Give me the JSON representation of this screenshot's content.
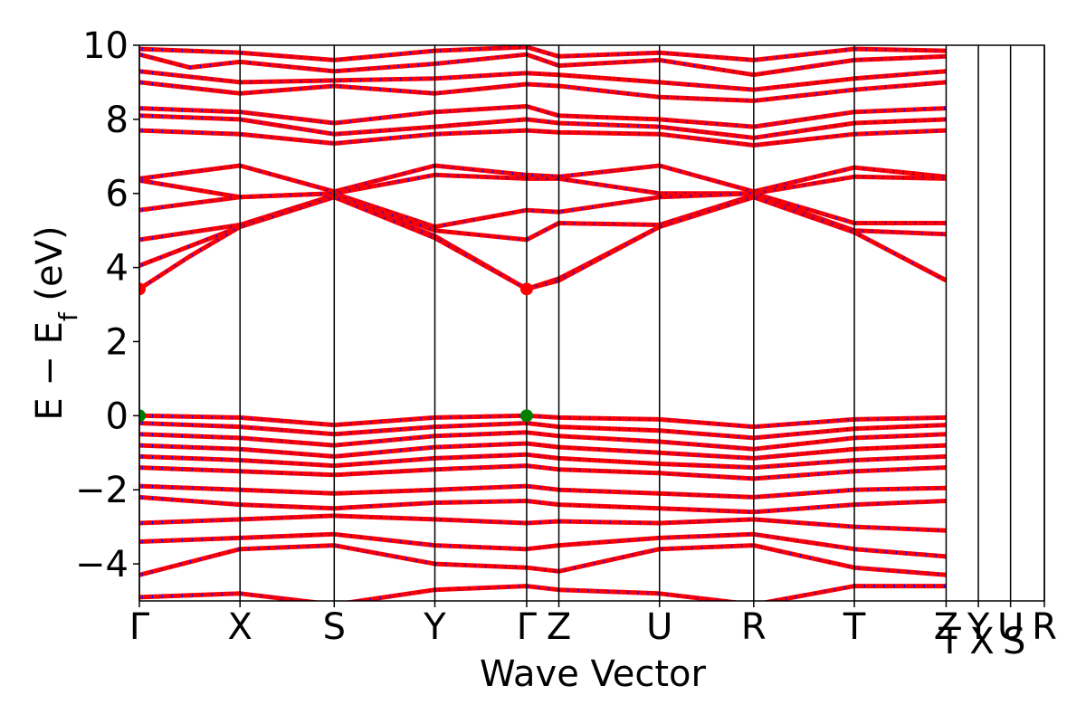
{
  "chart_data": {
    "type": "line",
    "title": "",
    "xlabel": "Wave Vector",
    "ylabel": "E − E",
    "ylabel_subscript": "f",
    "ylabel_unit": " (eV)",
    "ylim": [
      -5,
      10
    ],
    "yticks": [
      {
        "value": -4,
        "label": "−4"
      },
      {
        "value": -2,
        "label": "−2"
      },
      {
        "value": 0,
        "label": "0"
      },
      {
        "value": 2,
        "label": "2"
      },
      {
        "value": 4,
        "label": "4"
      },
      {
        "value": 6,
        "label": "6"
      },
      {
        "value": 8,
        "label": "8"
      },
      {
        "value": 10,
        "label": "10"
      }
    ],
    "kpoints": [
      {
        "label": "Γ",
        "x": 0.0
      },
      {
        "label": "X",
        "x": 0.5
      },
      {
        "label": "S",
        "x": 0.968
      },
      {
        "label": "Y",
        "x": 1.468
      },
      {
        "label": "Γ",
        "x": 1.924
      },
      {
        "label": "Z",
        "x": 2.084
      },
      {
        "label": "U",
        "x": 2.584
      },
      {
        "label": "R",
        "x": 3.052
      },
      {
        "label": "T",
        "x": 3.552
      },
      {
        "label": "Z",
        "x": 4.008
      },
      {
        "label": "T",
        "x": 4.008
      },
      {
        "label": "Y",
        "x": 4.168
      },
      {
        "label": "X",
        "x": 4.168
      },
      {
        "label": "U",
        "x": 4.328
      },
      {
        "label": "S",
        "x": 4.328
      },
      {
        "label": "R",
        "x": 4.496
      }
    ],
    "xlim": [
      0,
      4.496
    ],
    "colors": {
      "spin_up": "#0000ff",
      "spin_down": "#ff0000",
      "cbm": "#ff0000",
      "vbm": "#008000",
      "vline": "#000000"
    },
    "series": [
      {
        "values": [
          [
            0,
            9.9
          ],
          [
            0.5,
            9.8
          ],
          [
            0.968,
            9.6
          ],
          [
            1.468,
            9.85
          ],
          [
            1.924,
            9.95
          ],
          [
            2.084,
            9.7
          ],
          [
            2.584,
            9.8
          ],
          [
            3.052,
            9.6
          ],
          [
            3.552,
            9.9
          ],
          [
            4.008,
            9.85
          ]
        ]
      },
      {
        "values": [
          [
            0,
            9.75
          ],
          [
            0.25,
            9.4
          ],
          [
            0.5,
            9.55
          ],
          [
            0.968,
            9.3
          ],
          [
            1.468,
            9.5
          ],
          [
            1.924,
            9.75
          ],
          [
            2.084,
            9.45
          ],
          [
            2.584,
            9.6
          ],
          [
            3.052,
            9.2
          ],
          [
            3.552,
            9.6
          ],
          [
            4.008,
            9.7
          ]
        ]
      },
      {
        "values": [
          [
            0,
            9.3
          ],
          [
            0.5,
            9.0
          ],
          [
            0.968,
            9.05
          ],
          [
            1.468,
            9.1
          ],
          [
            1.924,
            9.25
          ],
          [
            2.084,
            9.2
          ],
          [
            2.584,
            9.0
          ],
          [
            3.052,
            8.8
          ],
          [
            3.552,
            9.1
          ],
          [
            4.008,
            9.3
          ]
        ]
      },
      {
        "values": [
          [
            0,
            9.0
          ],
          [
            0.5,
            8.7
          ],
          [
            0.968,
            8.9
          ],
          [
            1.468,
            8.7
          ],
          [
            1.924,
            8.95
          ],
          [
            2.084,
            8.9
          ],
          [
            2.584,
            8.6
          ],
          [
            3.052,
            8.5
          ],
          [
            3.552,
            8.8
          ],
          [
            4.008,
            9.0
          ]
        ]
      },
      {
        "values": [
          [
            0,
            8.3
          ],
          [
            0.5,
            8.2
          ],
          [
            0.968,
            7.9
          ],
          [
            1.468,
            8.2
          ],
          [
            1.924,
            8.35
          ],
          [
            2.084,
            8.1
          ],
          [
            2.584,
            8.0
          ],
          [
            3.052,
            7.8
          ],
          [
            3.552,
            8.2
          ],
          [
            4.008,
            8.3
          ]
        ]
      },
      {
        "values": [
          [
            0,
            8.1
          ],
          [
            0.5,
            8.0
          ],
          [
            0.968,
            7.6
          ],
          [
            1.468,
            7.8
          ],
          [
            1.924,
            8.0
          ],
          [
            2.084,
            7.9
          ],
          [
            2.584,
            7.8
          ],
          [
            3.052,
            7.5
          ],
          [
            3.552,
            7.9
          ],
          [
            4.008,
            8.0
          ]
        ]
      },
      {
        "values": [
          [
            0,
            7.7
          ],
          [
            0.5,
            7.6
          ],
          [
            0.968,
            7.35
          ],
          [
            1.468,
            7.6
          ],
          [
            1.924,
            7.7
          ],
          [
            2.084,
            7.65
          ],
          [
            2.584,
            7.6
          ],
          [
            3.052,
            7.3
          ],
          [
            3.552,
            7.6
          ],
          [
            4.008,
            7.7
          ]
        ]
      },
      {
        "values": [
          [
            0,
            6.4
          ],
          [
            0.5,
            6.75
          ],
          [
            0.968,
            6.05
          ],
          [
            1.468,
            6.75
          ],
          [
            1.924,
            6.5
          ],
          [
            2.084,
            6.45
          ],
          [
            2.584,
            6.75
          ],
          [
            3.052,
            6.05
          ],
          [
            3.552,
            6.7
          ],
          [
            4.008,
            6.45
          ]
        ]
      },
      {
        "values": [
          [
            0,
            6.35
          ],
          [
            0.5,
            5.9
          ],
          [
            0.968,
            6.0
          ],
          [
            1.468,
            6.5
          ],
          [
            1.924,
            6.4
          ],
          [
            2.084,
            6.4
          ],
          [
            2.584,
            6.0
          ],
          [
            3.052,
            6.0
          ],
          [
            3.552,
            6.45
          ],
          [
            4.008,
            6.4
          ]
        ]
      },
      {
        "values": [
          [
            0,
            5.55
          ],
          [
            0.5,
            5.9
          ],
          [
            0.968,
            6.0
          ],
          [
            1.468,
            5.1
          ],
          [
            1.924,
            5.55
          ],
          [
            2.084,
            5.5
          ],
          [
            2.584,
            5.9
          ],
          [
            3.052,
            6.0
          ],
          [
            3.552,
            5.2
          ],
          [
            4.008,
            5.2
          ]
        ]
      },
      {
        "values": [
          [
            0,
            4.75
          ],
          [
            0.5,
            5.15
          ],
          [
            0.968,
            5.95
          ],
          [
            1.468,
            5.0
          ],
          [
            1.924,
            4.75
          ],
          [
            2.084,
            5.2
          ],
          [
            2.584,
            5.15
          ],
          [
            3.052,
            5.95
          ],
          [
            3.552,
            5.0
          ],
          [
            4.008,
            4.9
          ]
        ]
      },
      {
        "values": [
          [
            0,
            4.05
          ],
          [
            0.5,
            5.1
          ],
          [
            0.968,
            5.9
          ],
          [
            1.468,
            4.85
          ],
          [
            1.924,
            3.42
          ],
          [
            2.084,
            3.7
          ],
          [
            2.584,
            5.1
          ],
          [
            3.052,
            5.9
          ],
          [
            3.552,
            4.95
          ],
          [
            4.008,
            3.65
          ]
        ]
      },
      {
        "values": [
          [
            0,
            3.42
          ],
          [
            0.25,
            4.3
          ],
          [
            0.5,
            5.1
          ],
          [
            0.968,
            5.9
          ],
          [
            1.468,
            4.8
          ],
          [
            1.924,
            3.42
          ],
          [
            2.084,
            3.65
          ],
          [
            2.584,
            5.1
          ],
          [
            3.052,
            5.9
          ],
          [
            3.552,
            4.95
          ],
          [
            4.008,
            3.65
          ]
        ]
      },
      {
        "values": [
          [
            0,
            0.0
          ],
          [
            0.5,
            -0.05
          ],
          [
            0.968,
            -0.25
          ],
          [
            1.468,
            -0.05
          ],
          [
            1.924,
            0.0
          ],
          [
            2.084,
            -0.05
          ],
          [
            2.584,
            -0.1
          ],
          [
            3.052,
            -0.3
          ],
          [
            3.552,
            -0.1
          ],
          [
            4.008,
            -0.05
          ]
        ]
      },
      {
        "values": [
          [
            0,
            -0.2
          ],
          [
            0.5,
            -0.3
          ],
          [
            0.968,
            -0.5
          ],
          [
            1.468,
            -0.3
          ],
          [
            1.924,
            -0.2
          ],
          [
            2.084,
            -0.3
          ],
          [
            2.584,
            -0.4
          ],
          [
            3.052,
            -0.6
          ],
          [
            3.552,
            -0.35
          ],
          [
            4.008,
            -0.25
          ]
        ]
      },
      {
        "values": [
          [
            0,
            -0.5
          ],
          [
            0.5,
            -0.6
          ],
          [
            0.968,
            -0.8
          ],
          [
            1.468,
            -0.55
          ],
          [
            1.924,
            -0.45
          ],
          [
            2.084,
            -0.55
          ],
          [
            2.584,
            -0.7
          ],
          [
            3.052,
            -0.9
          ],
          [
            3.552,
            -0.6
          ],
          [
            4.008,
            -0.5
          ]
        ]
      },
      {
        "values": [
          [
            0,
            -0.8
          ],
          [
            0.5,
            -0.9
          ],
          [
            0.968,
            -1.1
          ],
          [
            1.468,
            -0.85
          ],
          [
            1.924,
            -0.75
          ],
          [
            2.084,
            -0.85
          ],
          [
            2.584,
            -1.0
          ],
          [
            3.052,
            -1.15
          ],
          [
            3.552,
            -0.9
          ],
          [
            4.008,
            -0.8
          ]
        ]
      },
      {
        "values": [
          [
            0,
            -1.1
          ],
          [
            0.5,
            -1.2
          ],
          [
            0.968,
            -1.35
          ],
          [
            1.468,
            -1.15
          ],
          [
            1.924,
            -1.05
          ],
          [
            2.084,
            -1.15
          ],
          [
            2.584,
            -1.3
          ],
          [
            3.052,
            -1.4
          ],
          [
            3.552,
            -1.2
          ],
          [
            4.008,
            -1.1
          ]
        ]
      },
      {
        "values": [
          [
            0,
            -1.4
          ],
          [
            0.5,
            -1.5
          ],
          [
            0.968,
            -1.6
          ],
          [
            1.468,
            -1.45
          ],
          [
            1.924,
            -1.35
          ],
          [
            2.084,
            -1.45
          ],
          [
            2.584,
            -1.55
          ],
          [
            3.052,
            -1.7
          ],
          [
            3.552,
            -1.5
          ],
          [
            4.008,
            -1.4
          ]
        ]
      },
      {
        "values": [
          [
            0,
            -1.9
          ],
          [
            0.5,
            -2.0
          ],
          [
            0.968,
            -2.1
          ],
          [
            1.468,
            -2.0
          ],
          [
            1.924,
            -1.9
          ],
          [
            2.084,
            -2.0
          ],
          [
            2.584,
            -2.1
          ],
          [
            3.052,
            -2.2
          ],
          [
            3.552,
            -2.0
          ],
          [
            4.008,
            -1.95
          ]
        ]
      },
      {
        "values": [
          [
            0,
            -2.2
          ],
          [
            0.5,
            -2.4
          ],
          [
            0.968,
            -2.5
          ],
          [
            1.468,
            -2.35
          ],
          [
            1.924,
            -2.3
          ],
          [
            2.084,
            -2.4
          ],
          [
            2.584,
            -2.5
          ],
          [
            3.052,
            -2.6
          ],
          [
            3.552,
            -2.4
          ],
          [
            4.008,
            -2.3
          ]
        ]
      },
      {
        "values": [
          [
            0,
            -2.9
          ],
          [
            0.5,
            -2.8
          ],
          [
            0.968,
            -2.7
          ],
          [
            1.468,
            -2.8
          ],
          [
            1.924,
            -2.9
          ],
          [
            2.084,
            -2.85
          ],
          [
            2.584,
            -2.9
          ],
          [
            3.052,
            -2.8
          ],
          [
            3.552,
            -3.0
          ],
          [
            4.008,
            -3.1
          ]
        ]
      },
      {
        "values": [
          [
            0,
            -3.4
          ],
          [
            0.5,
            -3.3
          ],
          [
            0.968,
            -3.2
          ],
          [
            1.468,
            -3.5
          ],
          [
            1.924,
            -3.6
          ],
          [
            2.084,
            -3.5
          ],
          [
            2.584,
            -3.3
          ],
          [
            3.052,
            -3.2
          ],
          [
            3.552,
            -3.6
          ],
          [
            4.008,
            -3.8
          ]
        ]
      },
      {
        "values": [
          [
            0,
            -4.3
          ],
          [
            0.5,
            -3.6
          ],
          [
            0.968,
            -3.5
          ],
          [
            1.468,
            -4.0
          ],
          [
            1.924,
            -4.1
          ],
          [
            2.084,
            -4.2
          ],
          [
            2.584,
            -3.6
          ],
          [
            3.052,
            -3.5
          ],
          [
            3.552,
            -4.1
          ],
          [
            4.008,
            -4.3
          ]
        ]
      },
      {
        "values": [
          [
            0,
            -4.9
          ],
          [
            0.5,
            -4.8
          ],
          [
            0.968,
            -5.1
          ],
          [
            1.468,
            -4.7
          ],
          [
            1.924,
            -4.6
          ],
          [
            2.084,
            -4.7
          ],
          [
            2.584,
            -4.8
          ],
          [
            3.052,
            -5.1
          ],
          [
            3.552,
            -4.6
          ],
          [
            4.008,
            -4.6
          ]
        ]
      }
    ],
    "special_points": [
      {
        "kind": "cbm",
        "x": 0.0,
        "y": 3.42
      },
      {
        "kind": "cbm",
        "x": 1.924,
        "y": 3.42
      },
      {
        "kind": "vbm",
        "x": 0.0,
        "y": 0.0
      },
      {
        "kind": "vbm",
        "x": 1.924,
        "y": 0.0
      }
    ]
  }
}
